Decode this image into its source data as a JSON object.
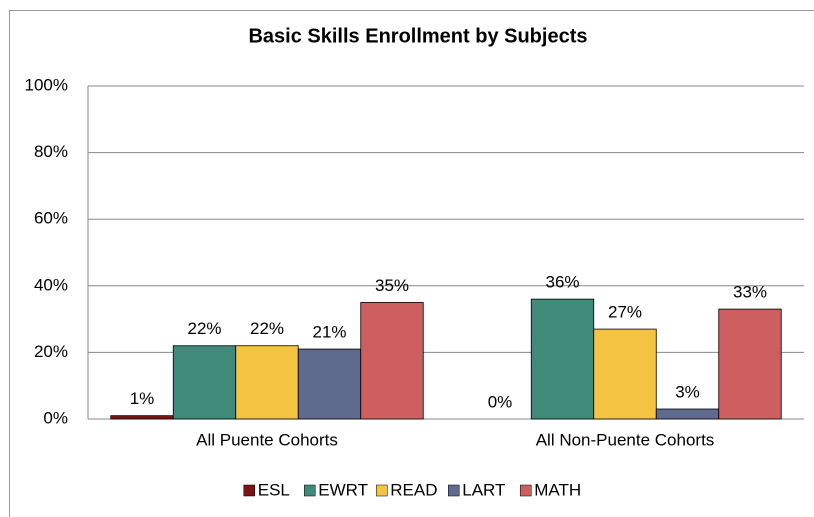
{
  "chart_data": {
    "type": "bar",
    "title": "Basic Skills Enrollment by Subjects",
    "categories": [
      "All Puente Cohorts",
      "All Non-Puente Cohorts"
    ],
    "series": [
      {
        "name": "ESL",
        "color": "#7f1414",
        "values": [
          1,
          0
        ],
        "value_labels": [
          "1%",
          "0%"
        ]
      },
      {
        "name": "EWRT",
        "color": "#3f8a78",
        "values": [
          22,
          36
        ],
        "value_labels": [
          "22%",
          "36%"
        ]
      },
      {
        "name": "READ",
        "color": "#f5c342",
        "values": [
          22,
          27
        ],
        "value_labels": [
          "22%",
          "27%"
        ]
      },
      {
        "name": "LART",
        "color": "#5f6a8f",
        "values": [
          21,
          3
        ],
        "value_labels": [
          "21%",
          "3%"
        ]
      },
      {
        "name": "MATH",
        "color": "#cd5f60",
        "values": [
          35,
          33
        ],
        "value_labels": [
          "35%",
          "33%"
        ]
      }
    ],
    "ylim": [
      0,
      100
    ],
    "yticks": [
      {
        "value": 0,
        "label": "0%"
      },
      {
        "value": 20,
        "label": "20%"
      },
      {
        "value": 40,
        "label": "40%"
      },
      {
        "value": 60,
        "label": "60%"
      },
      {
        "value": 80,
        "label": "80%"
      },
      {
        "value": 100,
        "label": "100%"
      }
    ],
    "grid": true,
    "legend": "bottom"
  }
}
